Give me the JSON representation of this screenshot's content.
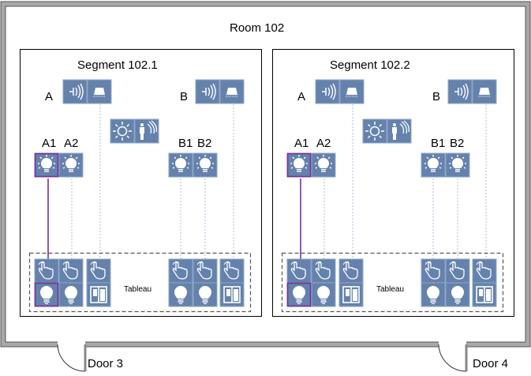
{
  "room": {
    "title": "Room 102"
  },
  "doors": [
    {
      "label": "Door 3"
    },
    {
      "label": "Door 4"
    }
  ],
  "segments": [
    {
      "title": "Segment 102.1",
      "group_a": "A",
      "group_b": "B",
      "lights": [
        "A1",
        "A2",
        "B1",
        "B2"
      ],
      "tableau": "Tableau"
    },
    {
      "title": "Segment 102.2",
      "group_a": "A",
      "group_b": "B",
      "lights": [
        "A1",
        "A2",
        "B1",
        "B2"
      ],
      "tableau": "Tableau"
    }
  ],
  "icons": {
    "group_devices": [
      "blind-motor-icon",
      "curtain-icon"
    ],
    "sensors": [
      "brightness-sensor-icon",
      "presence-sensor-icon"
    ],
    "lights": "light-bulb-icon",
    "tableau_top": "hand-pointer-icon",
    "tableau_bottom": [
      "bulb-button-icon",
      "window-blind-button-icon"
    ]
  },
  "colors": {
    "block": "#6582ad",
    "highlight": "#7a2fa0",
    "wall": "#a8a8a8",
    "link": "#a9bfdc"
  }
}
